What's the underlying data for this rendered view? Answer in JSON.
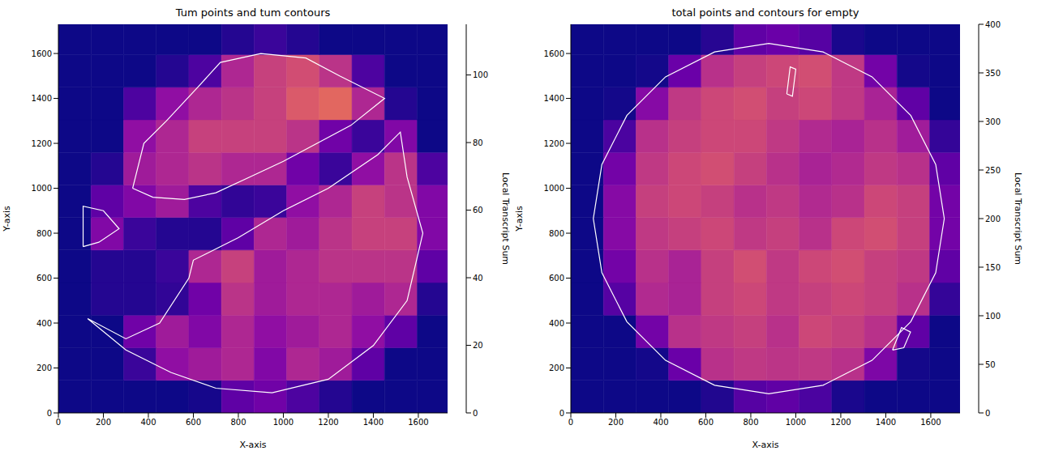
{
  "chart_data": [
    {
      "type": "heatmap",
      "title": "Tum points and tum contours",
      "x_label": "X-axis",
      "y_label": "Y-axis",
      "xlim": [
        0,
        1730
      ],
      "ylim": [
        0,
        1730
      ],
      "xticks": [
        0,
        200,
        400,
        600,
        800,
        1000,
        1200,
        1400,
        1600
      ],
      "yticks": [
        0,
        200,
        400,
        600,
        800,
        1000,
        1200,
        1400,
        1600
      ],
      "x_edges": [
        0,
        145,
        290,
        435,
        580,
        725,
        870,
        1015,
        1160,
        1305,
        1450,
        1595,
        1730
      ],
      "y_edges": [
        0,
        145,
        290,
        435,
        580,
        725,
        870,
        1015,
        1160,
        1305,
        1450,
        1595,
        1730
      ],
      "cells": [
        [
          0,
          0,
          0,
          0,
          2,
          20,
          25,
          15,
          5,
          0,
          0,
          0
        ],
        [
          0,
          0,
          10,
          35,
          40,
          45,
          30,
          45,
          40,
          20,
          0,
          0
        ],
        [
          0,
          0,
          25,
          40,
          30,
          45,
          35,
          40,
          45,
          35,
          20,
          0
        ],
        [
          0,
          5,
          5,
          8,
          25,
          50,
          40,
          45,
          45,
          40,
          45,
          5
        ],
        [
          0,
          5,
          5,
          10,
          45,
          55,
          40,
          45,
          50,
          50,
          50,
          20
        ],
        [
          0,
          30,
          10,
          5,
          5,
          20,
          45,
          40,
          50,
          55,
          55,
          30
        ],
        [
          0,
          20,
          30,
          40,
          15,
          8,
          10,
          35,
          45,
          55,
          50,
          30
        ],
        [
          0,
          5,
          40,
          45,
          50,
          45,
          45,
          25,
          10,
          35,
          50,
          15
        ],
        [
          0,
          0,
          35,
          45,
          55,
          55,
          55,
          50,
          25,
          10,
          30,
          0
        ],
        [
          0,
          0,
          15,
          35,
          45,
          50,
          55,
          65,
          70,
          45,
          5,
          0
        ],
        [
          0,
          0,
          0,
          5,
          15,
          45,
          55,
          60,
          50,
          15,
          0,
          0
        ],
        [
          0,
          0,
          0,
          0,
          0,
          5,
          10,
          5,
          0,
          0,
          0,
          0
        ]
      ],
      "colorbar": {
        "range": [
          0,
          115
        ],
        "ticks": [
          0,
          20,
          40,
          60,
          80,
          100
        ],
        "label": "Local Transcript Sum"
      },
      "contours": {
        "color": "#ffffff",
        "lines": [
          {
            "x": [
              330,
              380,
              480,
              620,
              720,
              900,
              1100,
              1250,
              1450,
              1300,
              1150,
              1000,
              850,
              700,
              560,
              420,
              330
            ],
            "y": [
              1000,
              1200,
              1300,
              1450,
              1560,
              1600,
              1580,
              1500,
              1400,
              1280,
              1200,
              1120,
              1050,
              980,
              950,
              960,
              1000
            ]
          },
          {
            "x": [
              130,
              300,
              500,
              700,
              950,
              1200,
              1400,
              1550,
              1620,
              1550,
              1520,
              1420,
              1200,
              1000,
              800,
              600,
              580,
              450,
              300,
              130
            ],
            "y": [
              420,
              280,
              180,
              110,
              90,
              150,
              300,
              500,
              800,
              1050,
              1250,
              1150,
              1000,
              900,
              780,
              680,
              600,
              400,
              330,
              420
            ]
          },
          {
            "x": [
              110,
              110,
              200,
              270,
              180,
              110
            ],
            "y": [
              740,
              920,
              900,
              820,
              760,
              740
            ]
          }
        ]
      }
    },
    {
      "type": "heatmap",
      "title": "total points and contours for empty",
      "x_label": "X-axis",
      "y_label": "Y-axis",
      "xlim": [
        0,
        1730
      ],
      "ylim": [
        0,
        1730
      ],
      "xticks": [
        0,
        200,
        400,
        600,
        800,
        1000,
        1200,
        1400,
        1600
      ],
      "yticks": [
        0,
        200,
        400,
        600,
        800,
        1000,
        1200,
        1400,
        1600
      ],
      "x_edges": [
        0,
        145,
        290,
        435,
        580,
        725,
        870,
        1015,
        1160,
        1305,
        1450,
        1595,
        1730
      ],
      "y_edges": [
        0,
        145,
        290,
        435,
        580,
        725,
        870,
        1015,
        1160,
        1305,
        1450,
        1595,
        1730
      ],
      "cells": [
        [
          0,
          0,
          0,
          0,
          15,
          60,
          70,
          50,
          10,
          0,
          0,
          0
        ],
        [
          0,
          0,
          5,
          80,
          170,
          180,
          175,
          180,
          170,
          100,
          5,
          0
        ],
        [
          0,
          0,
          90,
          170,
          180,
          190,
          170,
          200,
          190,
          170,
          70,
          0
        ],
        [
          0,
          60,
          160,
          150,
          190,
          200,
          180,
          190,
          200,
          190,
          170,
          30
        ],
        [
          0,
          90,
          170,
          150,
          190,
          210,
          180,
          200,
          210,
          190,
          180,
          70
        ],
        [
          0,
          110,
          180,
          190,
          200,
          180,
          190,
          170,
          200,
          210,
          190,
          90
        ],
        [
          0,
          110,
          190,
          200,
          190,
          170,
          180,
          160,
          170,
          200,
          190,
          90
        ],
        [
          0,
          90,
          180,
          200,
          210,
          190,
          170,
          150,
          160,
          180,
          170,
          70
        ],
        [
          0,
          50,
          170,
          190,
          200,
          200,
          180,
          160,
          150,
          170,
          140,
          30
        ],
        [
          0,
          5,
          110,
          180,
          200,
          210,
          190,
          200,
          180,
          150,
          70,
          0
        ],
        [
          0,
          0,
          5,
          80,
          170,
          190,
          200,
          210,
          180,
          90,
          5,
          0
        ],
        [
          0,
          0,
          0,
          0,
          20,
          70,
          80,
          60,
          10,
          0,
          0,
          0
        ]
      ],
      "colorbar": {
        "range": [
          0,
          400
        ],
        "ticks": [
          0,
          50,
          100,
          150,
          200,
          250,
          300,
          350,
          400
        ],
        "label": "Local Transcript Sum"
      },
      "contours": {
        "color": "#ffffff",
        "lines": [
          {
            "x": [
              1660,
              1622,
              1511,
              1339,
              1121,
              880,
              639,
              421,
              249,
              138,
              100,
              138,
              249,
              421,
              639,
              880,
              1121,
              1339,
              1511,
              1622,
              1660
            ],
            "y": [
              865,
              1106,
              1324,
              1496,
              1607,
              1645,
              1607,
              1496,
              1324,
              1106,
              865,
              624,
              406,
              234,
              123,
              85,
              123,
              234,
              406,
              624,
              865
            ]
          },
          {
            "x": [
              1430,
              1480,
              1510,
              1470,
              1430
            ],
            "y": [
              280,
              290,
              360,
              380,
              280
            ]
          },
          {
            "x": [
              960,
              975,
              1000,
              985,
              960
            ],
            "y": [
              1420,
              1540,
              1530,
              1410,
              1420
            ]
          }
        ]
      }
    }
  ]
}
